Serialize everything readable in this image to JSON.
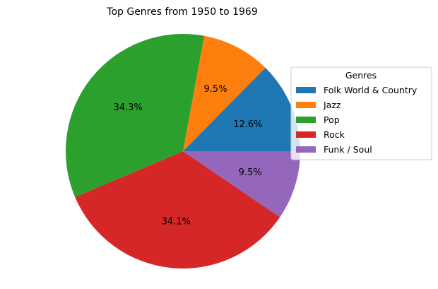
{
  "chart_data": {
    "type": "pie",
    "title": "Top Genres from 1950 to 1969",
    "legend": {
      "title": "Genres",
      "placement": "right"
    },
    "slices": [
      {
        "label": "Folk World & Country",
        "value": 12.6,
        "pct_label": "12.6%",
        "color": "#1f77b4"
      },
      {
        "label": "Jazz",
        "value": 9.5,
        "pct_label": "9.5%",
        "color": "#ff7f0e"
      },
      {
        "label": "Pop",
        "value": 34.3,
        "pct_label": "34.3%",
        "color": "#2ca02c"
      },
      {
        "label": "Rock",
        "value": 34.1,
        "pct_label": "34.1%",
        "color": "#d62728"
      },
      {
        "label": "Funk / Soul",
        "value": 9.5,
        "pct_label": "9.5%",
        "color": "#9467bd"
      }
    ],
    "start_angle_deg": 0,
    "direction": "counterclockwise"
  }
}
